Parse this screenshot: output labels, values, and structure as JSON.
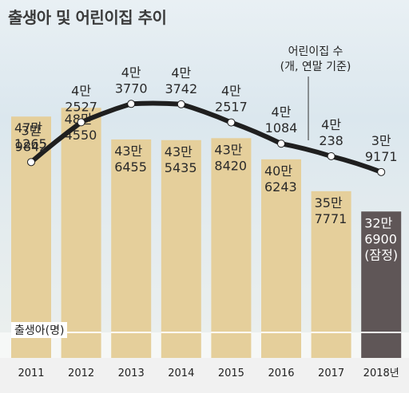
{
  "title": "출생아 및 어린이집 추이",
  "daycare_note_line1": "어린이집 수",
  "daycare_note_line2": "(개, 연말 기준)",
  "births_label": "출생아(명)",
  "chart_data": {
    "type": "bar+line",
    "categories": [
      "2011",
      "2012",
      "2013",
      "2014",
      "2015",
      "2016",
      "2017",
      "2018년"
    ],
    "series": [
      {
        "name": "출생아(명)",
        "type": "bar",
        "values": [
          471265,
          484550,
          436455,
          435435,
          438420,
          406243,
          357771,
          326900
        ],
        "labels": [
          [
            "47만",
            "1265"
          ],
          [
            "48만",
            "4550"
          ],
          [
            "43만",
            "6455"
          ],
          [
            "43만",
            "5435"
          ],
          [
            "43만",
            "8420"
          ],
          [
            "40만",
            "6243"
          ],
          [
            "35만",
            "7771"
          ],
          [
            "32만",
            "6900",
            "(잠정)"
          ]
        ],
        "colors": [
          "#e5cf9b",
          "#e5cf9b",
          "#e5cf9b",
          "#e5cf9b",
          "#e5cf9b",
          "#e5cf9b",
          "#e5cf9b",
          "#5f5657"
        ]
      },
      {
        "name": "어린이집 수",
        "type": "line",
        "values": [
          39842,
          42527,
          43770,
          43742,
          42517,
          41084,
          40238,
          39171
        ],
        "labels": [
          [
            "3만",
            "9842"
          ],
          [
            "4만",
            "2527"
          ],
          [
            "4만",
            "3770"
          ],
          [
            "4만",
            "3742"
          ],
          [
            "4만",
            "2517"
          ],
          [
            "4만",
            "1084"
          ],
          [
            "4만",
            "238"
          ],
          [
            "3만",
            "9171"
          ]
        ],
        "color": "#1f1f1f"
      }
    ]
  }
}
